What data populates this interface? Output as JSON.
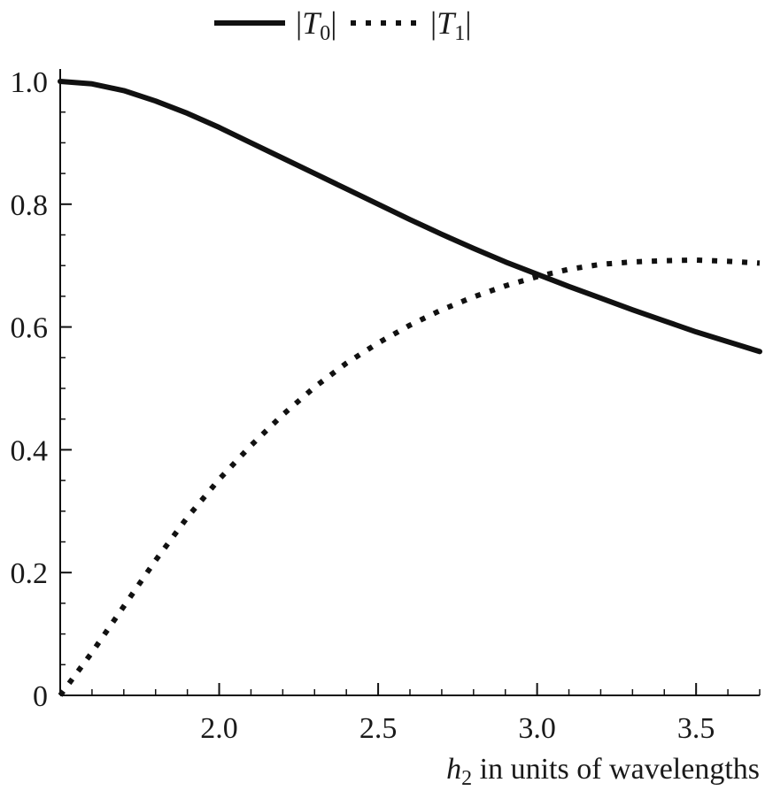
{
  "chart_data": {
    "type": "line",
    "xlabel": "h2 in units of wavelengths",
    "xlabel_parts": {
      "var": "h",
      "sub": "2",
      "rest": " in units of wavelengths"
    },
    "ylabel": "",
    "xlim": [
      1.5,
      3.7
    ],
    "ylim": [
      0,
      1.0
    ],
    "x_ticks": [
      2.0,
      2.5,
      3.0,
      3.5
    ],
    "x_tick_labels": [
      "2.0",
      "2.5",
      "3.0",
      "3.5"
    ],
    "x_minor_step": 0.1,
    "y_ticks": [
      0,
      0.2,
      0.4,
      0.6,
      0.8,
      1.0
    ],
    "y_tick_labels": [
      "0",
      "0.2",
      "0.4",
      "0.6",
      "0.8",
      "1.0"
    ],
    "y_minor_step": 0.05,
    "grid": false,
    "legend_position": "top",
    "series": [
      {
        "name": "|T0|",
        "label_parts": {
          "var": "T",
          "sub": "0"
        },
        "style": "solid",
        "color": "#111111",
        "x": [
          1.5,
          1.6,
          1.7,
          1.8,
          1.9,
          2.0,
          2.1,
          2.2,
          2.3,
          2.4,
          2.5,
          2.6,
          2.7,
          2.8,
          2.9,
          3.0,
          3.1,
          3.2,
          3.3,
          3.4,
          3.5,
          3.6,
          3.7
        ],
        "y": [
          1.0,
          0.996,
          0.985,
          0.968,
          0.948,
          0.925,
          0.9,
          0.875,
          0.85,
          0.825,
          0.8,
          0.775,
          0.751,
          0.728,
          0.706,
          0.686,
          0.666,
          0.647,
          0.628,
          0.61,
          0.592,
          0.576,
          0.56
        ]
      },
      {
        "name": "|T1|",
        "label_parts": {
          "var": "T",
          "sub": "1"
        },
        "style": "dotted",
        "color": "#111111",
        "x": [
          1.5,
          1.6,
          1.7,
          1.8,
          1.9,
          2.0,
          2.1,
          2.2,
          2.3,
          2.4,
          2.5,
          2.6,
          2.7,
          2.8,
          2.9,
          3.0,
          3.1,
          3.2,
          3.3,
          3.4,
          3.5,
          3.6,
          3.7
        ],
        "y": [
          0.0,
          0.07,
          0.145,
          0.22,
          0.29,
          0.352,
          0.407,
          0.457,
          0.502,
          0.541,
          0.574,
          0.603,
          0.628,
          0.649,
          0.667,
          0.682,
          0.694,
          0.702,
          0.706,
          0.708,
          0.709,
          0.707,
          0.704
        ]
      }
    ]
  }
}
